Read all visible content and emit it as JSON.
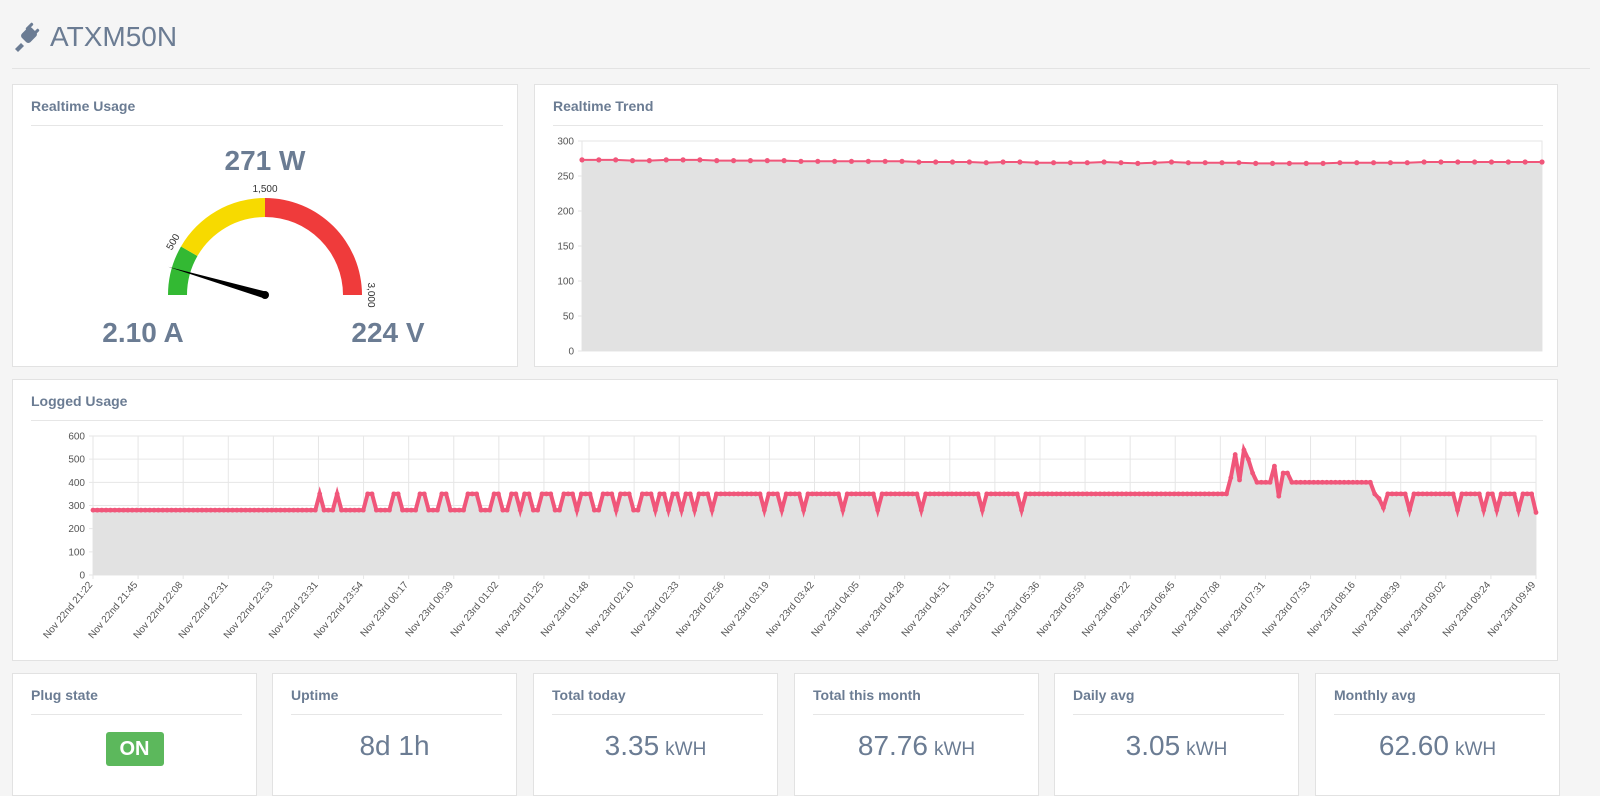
{
  "app": {
    "title": "ATXM50N",
    "icon": "plug-icon"
  },
  "realtime_usage": {
    "title": "Realtime Usage",
    "power": "271 W",
    "current": "2.10 A",
    "voltage": "224 V",
    "gauge": {
      "value": 271,
      "min": 0,
      "max": 3000,
      "ticks": [
        "500",
        "1,500",
        "3,000"
      ],
      "bands": [
        {
          "from": 0,
          "to": 500,
          "color": "#33b933"
        },
        {
          "from": 500,
          "to": 1500,
          "color": "#f7da00"
        },
        {
          "from": 1500,
          "to": 3000,
          "color": "#ef3b3b"
        }
      ]
    }
  },
  "chart_data": [
    {
      "name": "realtime_trend",
      "title": "Realtime Trend",
      "type": "area",
      "ylim": [
        0,
        300
      ],
      "yticks": [
        "0",
        "50",
        "100",
        "150",
        "200",
        "250",
        "300"
      ],
      "values": [
        273,
        273,
        273,
        272,
        272,
        273,
        273,
        273,
        272,
        272,
        272,
        272,
        272,
        271,
        271,
        271,
        271,
        271,
        271,
        271,
        270,
        270,
        270,
        270,
        269,
        270,
        270,
        269,
        269,
        269,
        269,
        270,
        269,
        268,
        269,
        270,
        269,
        269,
        269,
        269,
        268,
        268,
        268,
        268,
        268,
        269,
        269,
        269,
        269,
        269,
        270,
        270,
        270,
        270,
        270,
        270,
        270,
        270
      ],
      "color": "#f0567a",
      "fill": "#e2e2e2",
      "grid": true
    },
    {
      "name": "logged_usage",
      "title": "Logged Usage",
      "type": "area",
      "ylim": [
        0,
        600
      ],
      "yticks": [
        "0",
        "100",
        "200",
        "300",
        "400",
        "500",
        "600"
      ],
      "xticks": [
        "Nov 22nd 21:22",
        "Nov 22nd 21:45",
        "Nov 22nd 22:08",
        "Nov 22nd 22:31",
        "Nov 22nd 22:53",
        "Nov 22nd 23:31",
        "Nov 22nd 23:54",
        "Nov 23rd 00:17",
        "Nov 23rd 00:39",
        "Nov 23rd 01:02",
        "Nov 23rd 01:25",
        "Nov 23rd 01:48",
        "Nov 23rd 02:10",
        "Nov 23rd 02:33",
        "Nov 23rd 02:56",
        "Nov 23rd 03:19",
        "Nov 23rd 03:42",
        "Nov 23rd 04:05",
        "Nov 23rd 04:28",
        "Nov 23rd 04:51",
        "Nov 23rd 05:13",
        "Nov 23rd 05:36",
        "Nov 23rd 05:59",
        "Nov 23rd 06:22",
        "Nov 23rd 06:45",
        "Nov 23rd 07:08",
        "Nov 23rd 07:31",
        "Nov 23rd 07:53",
        "Nov 23rd 08:16",
        "Nov 23rd 08:39",
        "Nov 23rd 09:02",
        "Nov 23rd 09:24",
        "Nov 23rd 09:49"
      ],
      "values": [
        280,
        280,
        280,
        280,
        280,
        280,
        280,
        280,
        280,
        280,
        280,
        280,
        280,
        280,
        280,
        280,
        280,
        280,
        280,
        280,
        280,
        280,
        280,
        280,
        280,
        280,
        280,
        280,
        280,
        280,
        280,
        280,
        280,
        280,
        280,
        280,
        280,
        280,
        280,
        280,
        280,
        280,
        280,
        280,
        280,
        280,
        280,
        280,
        280,
        280,
        280,
        280,
        350,
        280,
        280,
        280,
        350,
        280,
        280,
        280,
        280,
        280,
        280,
        350,
        350,
        280,
        280,
        280,
        280,
        350,
        350,
        280,
        280,
        280,
        280,
        350,
        350,
        280,
        280,
        280,
        350,
        350,
        280,
        280,
        280,
        280,
        350,
        350,
        350,
        280,
        280,
        280,
        350,
        350,
        280,
        280,
        350,
        350,
        280,
        350,
        350,
        280,
        280,
        350,
        350,
        350,
        280,
        280,
        350,
        350,
        350,
        280,
        350,
        350,
        350,
        280,
        280,
        350,
        350,
        350,
        280,
        350,
        350,
        350,
        280,
        280,
        350,
        350,
        350,
        280,
        350,
        350,
        280,
        350,
        350,
        280,
        350,
        350,
        280,
        350,
        350,
        350,
        280,
        350,
        350,
        350,
        350,
        350,
        350,
        350,
        350,
        350,
        350,
        350,
        280,
        350,
        350,
        350,
        280,
        350,
        350,
        350,
        350,
        280,
        350,
        350,
        350,
        350,
        350,
        350,
        350,
        350,
        280,
        350,
        350,
        350,
        350,
        350,
        350,
        350,
        280,
        350,
        350,
        350,
        350,
        350,
        350,
        350,
        350,
        350,
        280,
        350,
        350,
        350,
        350,
        350,
        350,
        350,
        350,
        350,
        350,
        350,
        350,
        350,
        280,
        350,
        350,
        350,
        350,
        350,
        350,
        350,
        350,
        280,
        350,
        350,
        350,
        350,
        350,
        350,
        350,
        350,
        350,
        350,
        350,
        350,
        350,
        350,
        350,
        350,
        350,
        350,
        350,
        350,
        350,
        350,
        350,
        350,
        350,
        350,
        350,
        350,
        350,
        350,
        350,
        350,
        350,
        350,
        350,
        350,
        350,
        350,
        350,
        350,
        350,
        350,
        350,
        350,
        350,
        350,
        350,
        420,
        520,
        410,
        540,
        500,
        440,
        400,
        400,
        400,
        400,
        470,
        340,
        440,
        440,
        400,
        400,
        400,
        400,
        400,
        400,
        400,
        400,
        400,
        400,
        400,
        400,
        400,
        400,
        400,
        400,
        400,
        400,
        400,
        350,
        330,
        290,
        350,
        350,
        350,
        350,
        350,
        280,
        350,
        350,
        350,
        350,
        350,
        350,
        350,
        350,
        350,
        350,
        280,
        350,
        350,
        350,
        350,
        350,
        280,
        350,
        350,
        280,
        350,
        350,
        350,
        350,
        280,
        350,
        350,
        350,
        270
      ],
      "color": "#f0567a",
      "fill": "#e2e2e2",
      "grid": true
    }
  ],
  "stats": {
    "plug_state": {
      "title": "Plug state",
      "value": "ON",
      "color": "#5cb85c"
    },
    "uptime": {
      "title": "Uptime",
      "value": "8d 1h"
    },
    "total_today": {
      "title": "Total today",
      "value": "3.35",
      "unit": "kWH"
    },
    "total_month": {
      "title": "Total this month",
      "value": "87.76",
      "unit": "kWH"
    },
    "daily_avg": {
      "title": "Daily avg",
      "value": "3.05",
      "unit": "kWH"
    },
    "monthly_avg": {
      "title": "Monthly avg",
      "value": "62.60",
      "unit": "kWH"
    }
  }
}
